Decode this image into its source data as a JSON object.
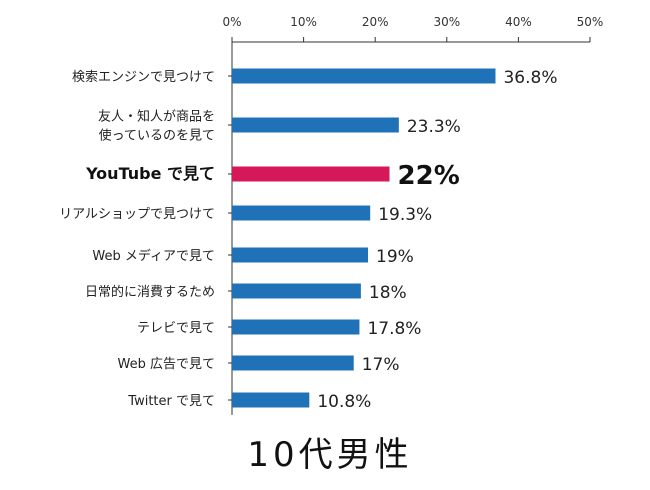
{
  "chart_data": {
    "type": "bar",
    "orientation": "horizontal",
    "categories": [
      [
        "検索エンジンで見つけて"
      ],
      [
        "友人・知人が商品を",
        "使っているのを見て"
      ],
      [
        "YouTube で見て"
      ],
      [
        "リアルショップで見つけて"
      ],
      [
        "Web メディアで見て"
      ],
      [
        "日常的に消費するため"
      ],
      [
        "テレビで見て"
      ],
      [
        "Web 広告で見て"
      ],
      [
        "Twitter で見て"
      ]
    ],
    "values": [
      36.8,
      23.3,
      22,
      19.3,
      19,
      18,
      17.8,
      17,
      10.8
    ],
    "value_labels": [
      "36.8%",
      "23.3%",
      "22%",
      "19.3%",
      "19%",
      "18%",
      "17.8%",
      "17%",
      "10.8%"
    ],
    "highlight_index": 2,
    "xlim": [
      0,
      50
    ],
    "x_ticks": [
      "0%",
      "10%",
      "20%",
      "30%",
      "40%",
      "50%"
    ],
    "x_tick_values": [
      0,
      10,
      20,
      30,
      40,
      50
    ],
    "colors": {
      "bar": "#1f72b8",
      "highlight": "#d6185b",
      "axis": "#333333"
    },
    "title": "",
    "caption": "10代男性",
    "xlabel": "",
    "ylabel": "",
    "grid": false,
    "legend": "none"
  }
}
